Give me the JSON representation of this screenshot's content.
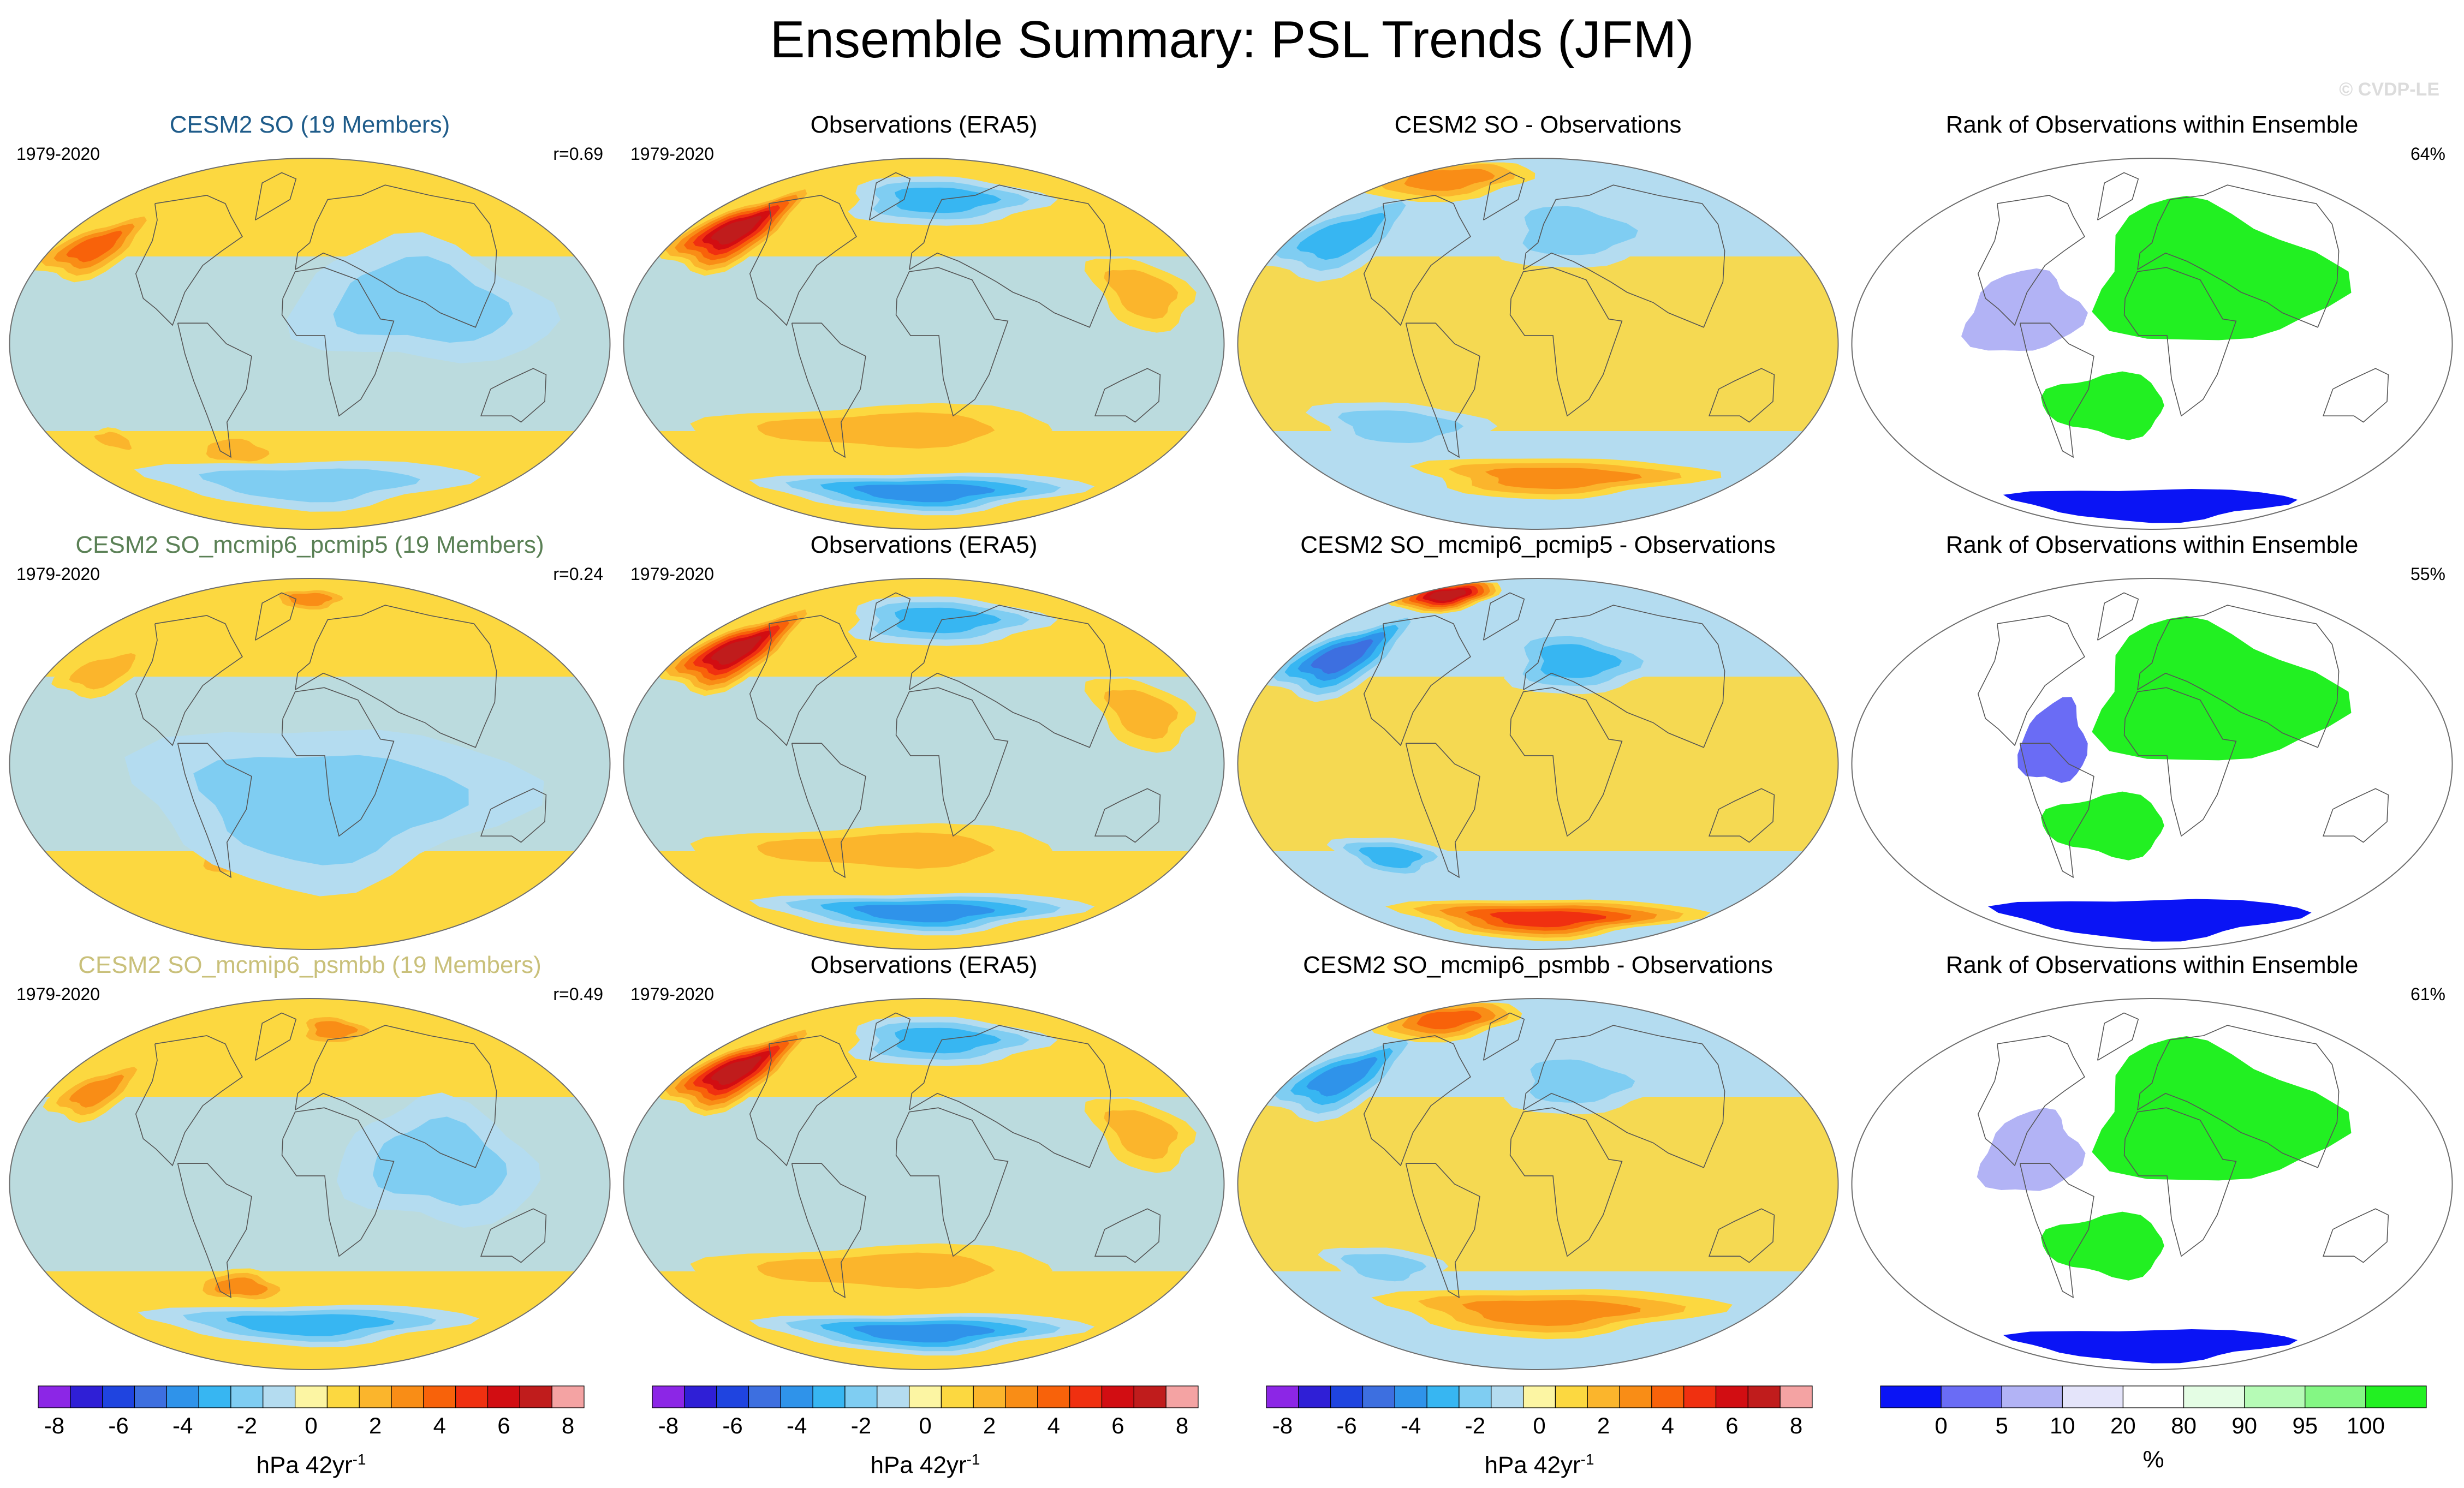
{
  "title": "Ensemble Summary: PSL Trends (JFM)",
  "watermark": "© CVDP-LE",
  "colors": {
    "trend_scale": [
      "#8c26e6",
      "#2f1fd6",
      "#1f44e0",
      "#3d6fe0",
      "#2f93ea",
      "#37b6f2",
      "#7fcdf2",
      "#b4dcf0",
      "#fcf5a3",
      "#fcd840",
      "#fbb52c",
      "#f98d16",
      "#f8620a",
      "#f03010",
      "#d20d12",
      "#c01c1c",
      "#f4a3a3"
    ],
    "rank_scale": [
      "#0a14f5",
      "#6a6cf5",
      "#b2b3f5",
      "#e4e4fa",
      "#ffffff",
      "#e4fde4",
      "#b6fbb6",
      "#84f784",
      "#22f022"
    ],
    "coastline": "#555555",
    "border": "#6e6e6e"
  },
  "rows": [
    {
      "ensemble": {
        "title": "CESM2 SO (19 Members)",
        "title_color": "#1f5c8a",
        "period": "1979-2020",
        "corr": "r=0.69"
      },
      "obs": {
        "title": "Observations (ERA5)",
        "period": "1979-2020"
      },
      "diff": {
        "title": "CESM2 SO - Observations"
      },
      "rank": {
        "title": "Rank of Observations within Ensemble",
        "pct": "64%"
      }
    },
    {
      "ensemble": {
        "title": "CESM2 SO_mcmip6_pcmip5 (19 Members)",
        "title_color": "#5a8055",
        "period": "1979-2020",
        "corr": "r=0.24"
      },
      "obs": {
        "title": "Observations (ERA5)",
        "period": "1979-2020"
      },
      "diff": {
        "title": "CESM2 SO_mcmip6_pcmip5 - Observations"
      },
      "rank": {
        "title": "Rank of Observations within Ensemble",
        "pct": "55%"
      }
    },
    {
      "ensemble": {
        "title": "CESM2 SO_mcmip6_psmbb (19 Members)",
        "title_color": "#c9c07a",
        "period": "1979-2020",
        "corr": "r=0.49"
      },
      "obs": {
        "title": "Observations (ERA5)",
        "period": "1979-2020"
      },
      "diff": {
        "title": "CESM2 SO_mcmip6_psmbb - Observations"
      },
      "rank": {
        "title": "Rank of Observations within Ensemble",
        "pct": "61%"
      }
    }
  ],
  "chart_data": [
    {
      "type": "heatmap",
      "description": "Sea level pressure trend maps (ensemble mean, observations, difference), Robinson-like projection",
      "units": "hPa 42yr",
      "units_superscript": "-1",
      "colorbar_levels": [
        -8,
        -7,
        -6,
        -5,
        -4,
        -3,
        -2,
        -1,
        0,
        1,
        2,
        3,
        4,
        5,
        6,
        7,
        8
      ],
      "colorbar_tick_labels": [
        "-8",
        "-6",
        "-4",
        "-2",
        "0",
        "2",
        "4",
        "6",
        "8"
      ],
      "rows_panels": [
        {
          "ensemble_features": [
            {
              "lon": -165,
              "lat": 47,
              "level": 4,
              "rx": 34,
              "ry": 16
            },
            {
              "lon": -60,
              "lat": -52,
              "level": 2,
              "rx": 38,
              "ry": 8
            },
            {
              "lon": -150,
              "lat": -47,
              "level": 2,
              "rx": 18,
              "ry": 6
            },
            {
              "lon": 0,
              "lat": -68,
              "level": -2,
              "rx": 160,
              "ry": 12
            },
            {
              "lon": 70,
              "lat": 20,
              "level": -2,
              "rx": 80,
              "ry": 30
            }
          ],
          "obs_features": [
            {
              "lon": -160,
              "lat": 55,
              "level": 7,
              "rx": 42,
              "ry": 20
            },
            {
              "lon": -30,
              "lat": -42,
              "level": 2,
              "rx": 130,
              "ry": 12
            },
            {
              "lon": 0,
              "lat": -72,
              "level": -4,
              "rx": 175,
              "ry": 10
            },
            {
              "lon": 20,
              "lat": 70,
              "level": -3,
              "rx": 110,
              "ry": 12
            },
            {
              "lon": 140,
              "lat": 25,
              "level": 2,
              "rx": 30,
              "ry": 18
            }
          ],
          "diff_features": [
            {
              "lon": -160,
              "lat": 52,
              "level": -3,
              "rx": 50,
              "ry": 20
            },
            {
              "lon": 30,
              "lat": 55,
              "level": -2,
              "rx": 70,
              "ry": 18
            },
            {
              "lon": -130,
              "lat": 80,
              "level": 3,
              "rx": 120,
              "ry": 10
            },
            {
              "lon": 20,
              "lat": -65,
              "level": 3,
              "rx": 140,
              "ry": 10
            },
            {
              "lon": -100,
              "lat": -40,
              "level": -2,
              "rx": 60,
              "ry": 12
            }
          ],
          "rank_features": [
            {
              "lon": 40,
              "lat": 35,
              "level": 100,
              "rx": 80,
              "ry": 35
            },
            {
              "lon": -30,
              "lat": -30,
              "level": 100,
              "rx": 40,
              "ry": 15
            },
            {
              "lon": 0,
              "lat": -78,
              "level": 0,
              "rx": 175,
              "ry": 8
            },
            {
              "lon": -80,
              "lat": 15,
              "level": 10,
              "rx": 35,
              "ry": 20
            }
          ]
        },
        {
          "ensemble_features": [
            {
              "lon": -155,
              "lat": 45,
              "level": 2,
              "rx": 30,
              "ry": 12
            },
            {
              "lon": 0,
              "lat": 80,
              "level": 3,
              "rx": 60,
              "ry": 6
            },
            {
              "lon": -60,
              "lat": -48,
              "level": 2,
              "rx": 35,
              "ry": 8
            },
            {
              "lon": 10,
              "lat": -20,
              "level": -2,
              "rx": 120,
              "ry": 40
            }
          ],
          "obs_features": [
            {
              "lon": -160,
              "lat": 55,
              "level": 7,
              "rx": 42,
              "ry": 20
            },
            {
              "lon": -30,
              "lat": -42,
              "level": 2,
              "rx": 130,
              "ry": 12
            },
            {
              "lon": 0,
              "lat": -72,
              "level": -4,
              "rx": 175,
              "ry": 10
            },
            {
              "lon": 20,
              "lat": 70,
              "level": -3,
              "rx": 110,
              "ry": 12
            },
            {
              "lon": 140,
              "lat": 25,
              "level": 2,
              "rx": 30,
              "ry": 18
            }
          ],
          "diff_features": [
            {
              "lon": -160,
              "lat": 52,
              "level": -5,
              "rx": 45,
              "ry": 20
            },
            {
              "lon": -140,
              "lat": 82,
              "level": 7,
              "rx": 80,
              "ry": 8
            },
            {
              "lon": 10,
              "lat": -75,
              "level": 5,
              "rx": 175,
              "ry": 10
            },
            {
              "lon": 30,
              "lat": 50,
              "level": -3,
              "rx": 60,
              "ry": 16
            },
            {
              "lon": -110,
              "lat": -45,
              "level": -3,
              "rx": 40,
              "ry": 10
            }
          ],
          "rank_features": [
            {
              "lon": 40,
              "lat": 35,
              "level": 100,
              "rx": 80,
              "ry": 35
            },
            {
              "lon": 0,
              "lat": -75,
              "level": 0,
              "rx": 175,
              "ry": 10
            },
            {
              "lon": -60,
              "lat": 10,
              "level": 5,
              "rx": 20,
              "ry": 20
            },
            {
              "lon": -30,
              "lat": -30,
              "level": 100,
              "rx": 40,
              "ry": 15
            }
          ]
        },
        {
          "ensemble_features": [
            {
              "lon": -160,
              "lat": 45,
              "level": 3,
              "rx": 28,
              "ry": 14
            },
            {
              "lon": 30,
              "lat": 75,
              "level": 3,
              "rx": 50,
              "ry": 8
            },
            {
              "lon": -55,
              "lat": -50,
              "level": 3,
              "rx": 40,
              "ry": 8
            },
            {
              "lon": 0,
              "lat": -68,
              "level": -3,
              "rx": 160,
              "ry": 10
            },
            {
              "lon": 80,
              "lat": 10,
              "level": -2,
              "rx": 60,
              "ry": 30
            }
          ],
          "obs_features": [
            {
              "lon": -160,
              "lat": 55,
              "level": 7,
              "rx": 42,
              "ry": 20
            },
            {
              "lon": -30,
              "lat": -42,
              "level": 2,
              "rx": 130,
              "ry": 12
            },
            {
              "lon": 0,
              "lat": -72,
              "level": -4,
              "rx": 175,
              "ry": 10
            },
            {
              "lon": 20,
              "lat": 70,
              "level": -3,
              "rx": 110,
              "ry": 12
            },
            {
              "lon": 140,
              "lat": 25,
              "level": 2,
              "rx": 30,
              "ry": 18
            }
          ],
          "diff_features": [
            {
              "lon": -160,
              "lat": 52,
              "level": -4,
              "rx": 45,
              "ry": 20
            },
            {
              "lon": -130,
              "lat": 80,
              "level": 4,
              "rx": 100,
              "ry": 10
            },
            {
              "lon": 10,
              "lat": -62,
              "level": 3,
              "rx": 150,
              "ry": 12
            },
            {
              "lon": 30,
              "lat": 50,
              "level": -2,
              "rx": 60,
              "ry": 16
            },
            {
              "lon": -110,
              "lat": -40,
              "level": -2,
              "rx": 40,
              "ry": 10
            }
          ],
          "rank_features": [
            {
              "lon": 40,
              "lat": 35,
              "level": 100,
              "rx": 80,
              "ry": 35
            },
            {
              "lon": 0,
              "lat": -78,
              "level": 0,
              "rx": 175,
              "ry": 8
            },
            {
              "lon": -30,
              "lat": -30,
              "level": 100,
              "rx": 40,
              "ry": 15
            },
            {
              "lon": -75,
              "lat": 15,
              "level": 10,
              "rx": 30,
              "ry": 20
            }
          ]
        }
      ]
    },
    {
      "type": "heatmap",
      "description": "Rank of observations within ensemble colorbar",
      "units": "%",
      "colorbar_levels": [
        0,
        5,
        10,
        20,
        80,
        90,
        95,
        100
      ],
      "colorbar_tick_labels": [
        "0",
        "5",
        "10",
        "20",
        "80",
        "90",
        "95",
        "100"
      ]
    }
  ]
}
